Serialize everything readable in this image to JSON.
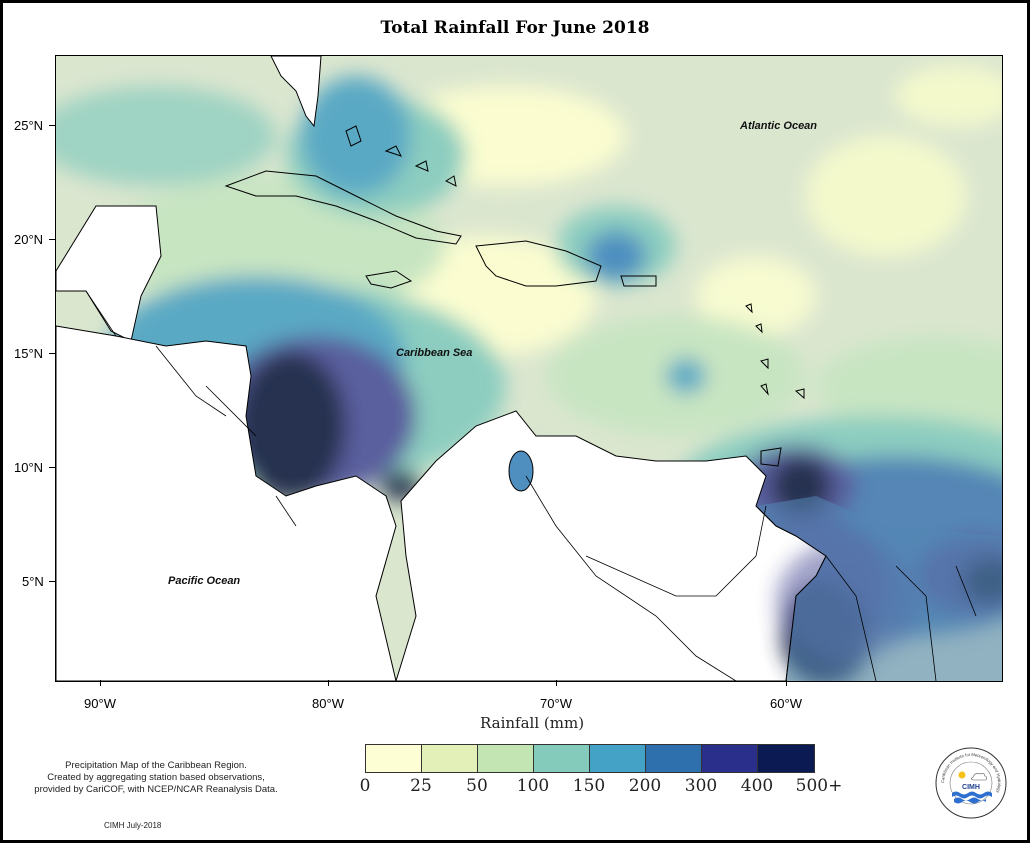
{
  "title": "Total Rainfall For June 2018",
  "map": {
    "y_ticks": [
      "25°N",
      "20°N",
      "15°N",
      "10°N",
      "5°N"
    ],
    "x_ticks": [
      "90°W",
      "80°W",
      "70°W",
      "60°W"
    ],
    "regions": {
      "atlantic": "Atlantic Ocean",
      "caribbean": "Caribbean Sea",
      "pacific": "Pacific Ocean"
    },
    "colors": {
      "land": "#ffffff",
      "coast": "#000000"
    }
  },
  "legend": {
    "title": "Rainfall (mm)",
    "labels": [
      "0",
      "25",
      "50",
      "100",
      "150",
      "200",
      "300",
      "400",
      "500+"
    ],
    "colors": [
      "#fdfed3",
      "#e3f1b8",
      "#c3e4b3",
      "#84cbbb",
      "#45a2c7",
      "#2e6fae",
      "#2b2f8c",
      "#0c1a53"
    ]
  },
  "description": {
    "line1": "Precipitation Map of the Caribbean Region.",
    "line2": "Created by aggregating station based observations,",
    "line3": "provided by CariCOF, with NCEP/NCAR Reanalysis Data."
  },
  "credit": "CIMH July-2018",
  "logo": {
    "name": "CIMH",
    "ring_text": "Caribbean Institute for Meteorology and Hydrology"
  }
}
